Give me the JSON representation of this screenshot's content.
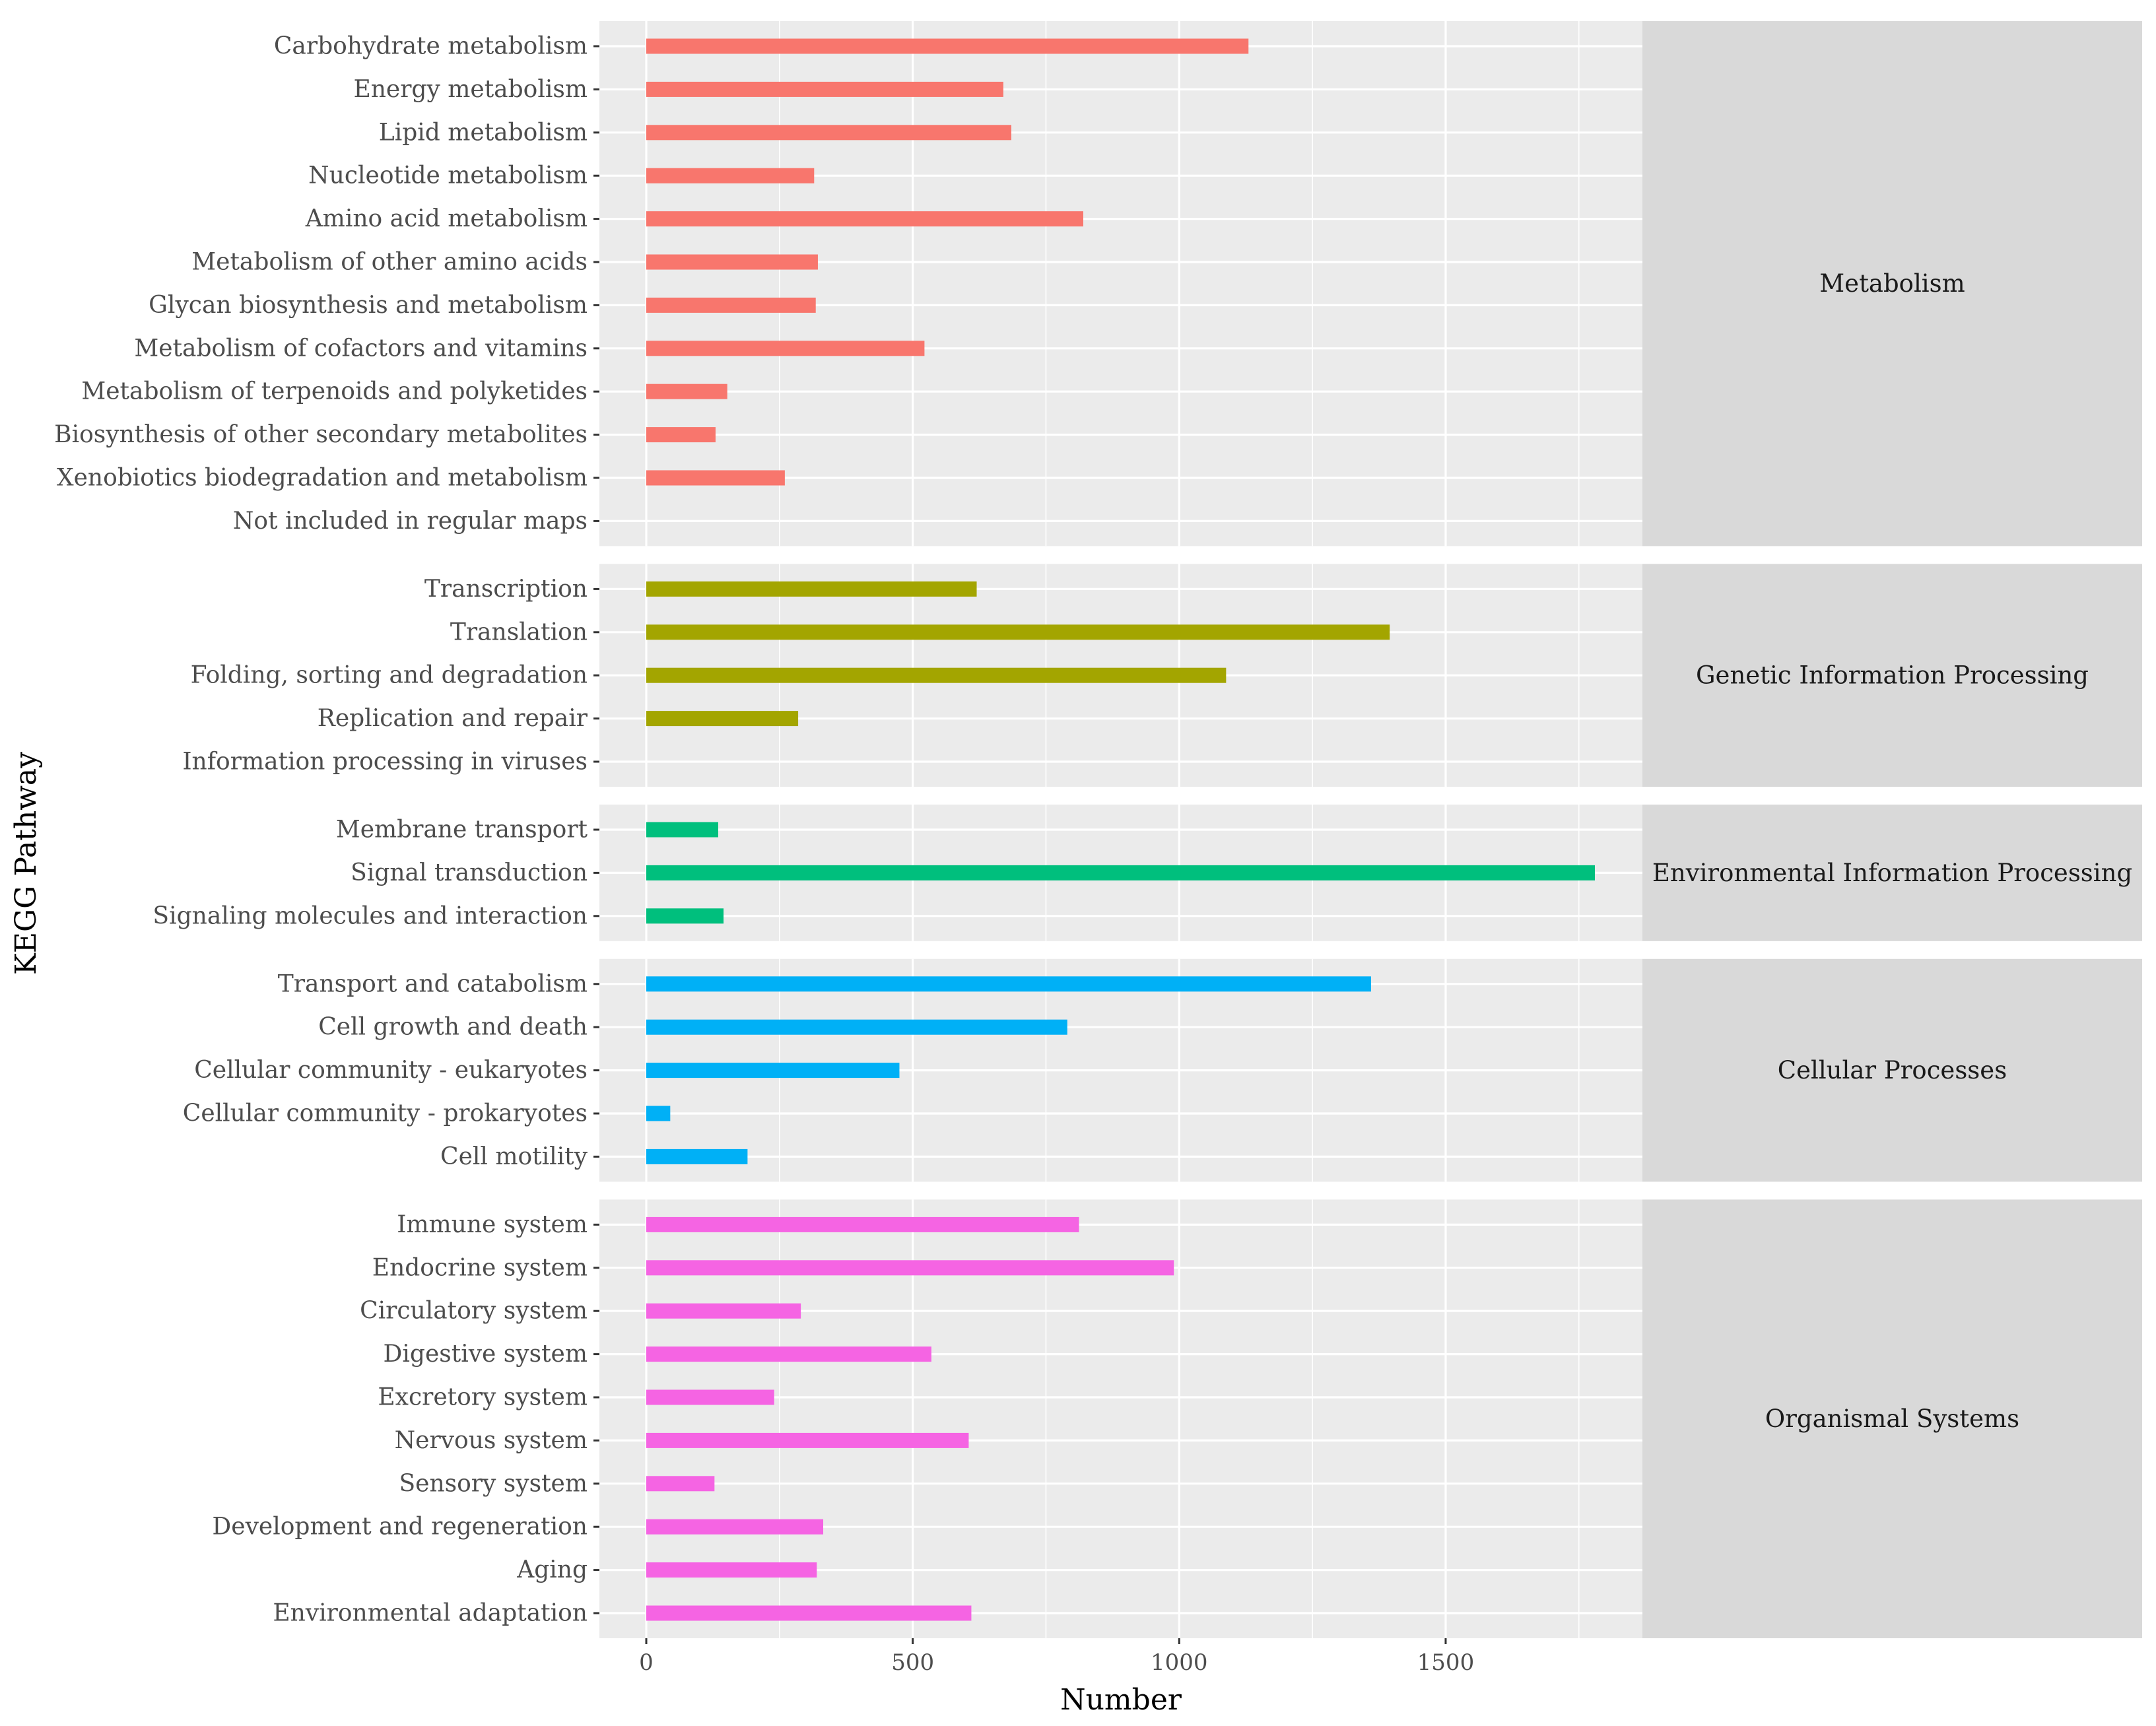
{
  "chart_data": {
    "type": "bar",
    "orientation": "horizontal",
    "facet": "rows",
    "xlabel": "Number",
    "ylabel": "KEGG Pathway",
    "xlim": [
      -90,
      1885
    ],
    "xticks": [
      0,
      500,
      1000,
      1500
    ],
    "xminor": [
      250,
      750,
      1250,
      1750
    ],
    "grid": true,
    "legend": "none",
    "panels": [
      {
        "name": "Metabolism",
        "color": "#F8766D",
        "categories": [
          "Carbohydrate metabolism",
          "Energy metabolism",
          "Lipid metabolism",
          "Nucleotide metabolism",
          "Amino acid metabolism",
          "Metabolism of other amino acids",
          "Glycan biosynthesis and metabolism",
          "Metabolism of cofactors and vitamins",
          "Metabolism of terpenoids and polyketides",
          "Biosynthesis of other secondary metabolites",
          "Xenobiotics biodegradation and metabolism",
          "Not included in regular maps"
        ],
        "values": [
          1130,
          670,
          685,
          315,
          820,
          322,
          318,
          522,
          152,
          130,
          260,
          0
        ]
      },
      {
        "name": "Genetic Information Processing",
        "color": "#A3A500",
        "categories": [
          "Transcription",
          "Translation",
          "Folding, sorting and degradation",
          "Replication and repair",
          "Information processing in viruses"
        ],
        "values": [
          620,
          1395,
          1088,
          285,
          0
        ]
      },
      {
        "name": "Environmental Information Processing",
        "color": "#00BF7D",
        "categories": [
          "Membrane transport",
          "Signal transduction",
          "Signaling molecules and interaction"
        ],
        "values": [
          135,
          1780,
          145
        ]
      },
      {
        "name": "Cellular Processes",
        "color": "#00B0F6",
        "categories": [
          "Transport and catabolism",
          "Cell growth and death",
          "Cellular community - eukaryotes",
          "Cellular community - prokaryotes",
          "Cell motility"
        ],
        "values": [
          1360,
          790,
          475,
          45,
          190
        ]
      },
      {
        "name": "Organismal Systems",
        "color": "#F564E3",
        "categories": [
          "Immune system",
          "Endocrine system",
          "Circulatory system",
          "Digestive system",
          "Excretory system",
          "Nervous system",
          "Sensory system",
          "Development and regeneration",
          "Aging",
          "Environmental adaptation"
        ],
        "values": [
          812,
          990,
          290,
          535,
          240,
          605,
          128,
          332,
          320,
          610
        ]
      }
    ]
  }
}
